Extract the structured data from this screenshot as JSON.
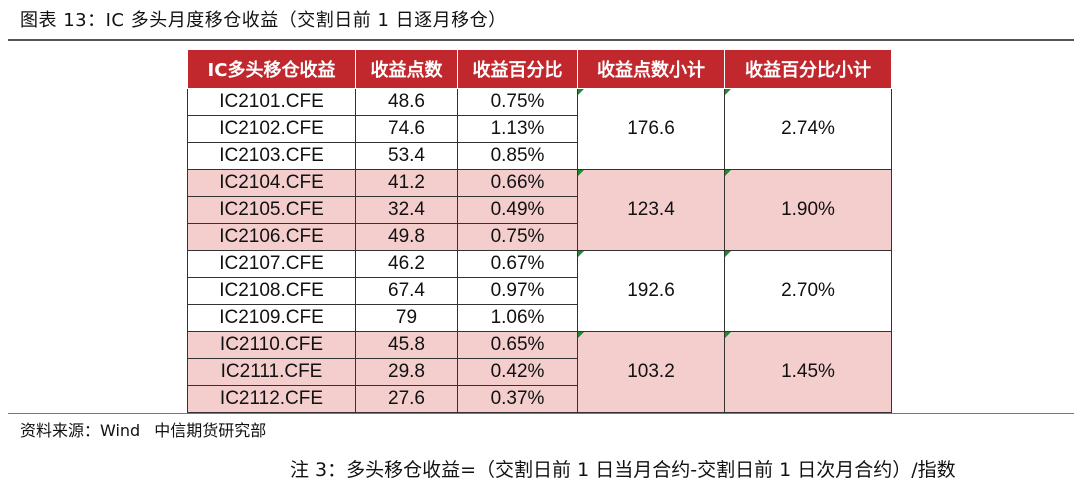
{
  "figure": {
    "title": "图表 13：IC 多头月度移仓收益（交割日前 1 日逐月移仓）"
  },
  "table": {
    "headers": [
      "IC多头移仓收益",
      "收益点数",
      "收益百分比",
      "收益点数小计",
      "收益百分比小计"
    ],
    "rows": [
      {
        "contract": "IC2101.CFE",
        "points": "48.6",
        "pct": "0.75%"
      },
      {
        "contract": "IC2102.CFE",
        "points": "74.6",
        "pct": "1.13%"
      },
      {
        "contract": "IC2103.CFE",
        "points": "53.4",
        "pct": "0.85%"
      },
      {
        "contract": "IC2104.CFE",
        "points": "41.2",
        "pct": "0.66%"
      },
      {
        "contract": "IC2105.CFE",
        "points": "32.4",
        "pct": "0.49%"
      },
      {
        "contract": "IC2106.CFE",
        "points": "49.8",
        "pct": "0.75%"
      },
      {
        "contract": "IC2107.CFE",
        "points": "46.2",
        "pct": "0.67%"
      },
      {
        "contract": "IC2108.CFE",
        "points": "67.4",
        "pct": "0.97%"
      },
      {
        "contract": "IC2109.CFE",
        "points": "79",
        "pct": "1.06%"
      },
      {
        "contract": "IC2110.CFE",
        "points": "45.8",
        "pct": "0.65%"
      },
      {
        "contract": "IC2111.CFE",
        "points": "29.8",
        "pct": "0.42%"
      },
      {
        "contract": "IC2112.CFE",
        "points": "27.6",
        "pct": "0.37%"
      }
    ],
    "subtotals": [
      {
        "points": "176.6",
        "pct": "2.74%"
      },
      {
        "points": "123.4",
        "pct": "1.90%"
      },
      {
        "points": "192.6",
        "pct": "2.70%"
      },
      {
        "points": "103.2",
        "pct": "1.45%"
      }
    ]
  },
  "colors": {
    "header_bg": "#c1282e",
    "header_text": "#ffffff",
    "shaded_row_bg": "#f4cdcd",
    "comment_marker": "#1e8a2e"
  },
  "source": {
    "label": "资料来源：Wind",
    "org": "中信期货研究部"
  },
  "note": "注 3：多头移仓收益=（交割日前 1 日当月合约-交割日前 1 日次月合约）/指数"
}
